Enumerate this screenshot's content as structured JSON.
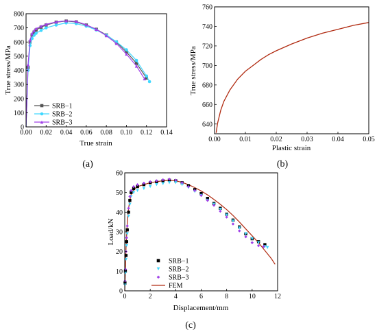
{
  "panels": [
    {
      "label": "(a)",
      "xlabel": "True strain",
      "ylabel": "True stress/MPa",
      "xticks": [
        "0.00",
        "0.02",
        "0.04",
        "0.06",
        "0.08",
        "0.10",
        "0.12",
        "0.14"
      ],
      "yticks": [
        "0",
        "100",
        "200",
        "300",
        "400",
        "500",
        "600",
        "700",
        "800"
      ],
      "legend": [
        "SRB−1",
        "SRB−2",
        "SRB−3"
      ]
    },
    {
      "label": "(b)",
      "xlabel": "Plastic strain",
      "ylabel": "True stress/MPa",
      "xticks": [
        "0.00",
        "0.01",
        "0.02",
        "0.03",
        "0.04",
        "0.05"
      ],
      "yticks": [
        "640",
        "660",
        "680",
        "700",
        "720",
        "740",
        "760"
      ]
    },
    {
      "label": "(c)",
      "xlabel": "Displacement/mm",
      "ylabel": "Load/kN",
      "xticks": [
        "0",
        "2",
        "4",
        "6",
        "8",
        "10",
        "12"
      ],
      "yticks": [
        "0",
        "10",
        "20",
        "30",
        "40",
        "50",
        "60"
      ],
      "legend": [
        "SRB−1",
        "SRB−2",
        "SRB−3",
        "FEM"
      ]
    }
  ],
  "colors": {
    "srb1": "#000000",
    "srb2": "#40d8ff",
    "srb3": "#a040e8",
    "fem": "#b02a10",
    "stress_strain": "#b02a10",
    "srb1_a": "#555555"
  },
  "chart_data": [
    {
      "type": "line",
      "xlabel": "True strain",
      "ylabel": "True stress/MPa",
      "xlim": [
        0,
        0.14
      ],
      "ylim": [
        0,
        800
      ],
      "series": [
        {
          "name": "SRB−1",
          "x": [
            0,
            0.002,
            0.004,
            0.006,
            0.008,
            0.01,
            0.015,
            0.02,
            0.03,
            0.04,
            0.05,
            0.06,
            0.07,
            0.08,
            0.09,
            0.1,
            0.11,
            0.12
          ],
          "y": [
            0,
            420,
            600,
            650,
            670,
            685,
            705,
            720,
            740,
            748,
            742,
            720,
            690,
            650,
            600,
            530,
            450,
            345
          ]
        },
        {
          "name": "SRB−2",
          "x": [
            0,
            0.002,
            0.004,
            0.006,
            0.008,
            0.01,
            0.015,
            0.02,
            0.03,
            0.04,
            0.05,
            0.06,
            0.07,
            0.08,
            0.09,
            0.1,
            0.11,
            0.12,
            0.123
          ],
          "y": [
            0,
            400,
            575,
            625,
            648,
            662,
            682,
            700,
            720,
            735,
            730,
            712,
            685,
            648,
            602,
            545,
            470,
            360,
            320
          ]
        },
        {
          "name": "SRB−3",
          "x": [
            0,
            0.002,
            0.004,
            0.006,
            0.008,
            0.01,
            0.015,
            0.02,
            0.03,
            0.04,
            0.05,
            0.06,
            0.07,
            0.08,
            0.09,
            0.1,
            0.11,
            0.118
          ],
          "y": [
            0,
            440,
            615,
            660,
            680,
            695,
            712,
            725,
            742,
            750,
            745,
            722,
            690,
            645,
            590,
            515,
            430,
            340
          ]
        }
      ]
    },
    {
      "type": "line",
      "xlabel": "Plastic strain",
      "ylabel": "True stress/MPa",
      "xlim": [
        0,
        0.05
      ],
      "ylim": [
        630,
        760
      ],
      "series": [
        {
          "x": [
            0.0005,
            0.001,
            0.002,
            0.003,
            0.005,
            0.0075,
            0.01,
            0.0125,
            0.015,
            0.0175,
            0.02,
            0.025,
            0.03,
            0.035,
            0.04,
            0.045,
            0.05
          ],
          "y": [
            631,
            641,
            654,
            663,
            675,
            686,
            694,
            700,
            706,
            711,
            715,
            722,
            728,
            733,
            737,
            741,
            744
          ]
        }
      ]
    },
    {
      "type": "line",
      "xlabel": "Displacement/mm",
      "ylabel": "Load/kN",
      "xlim": [
        0,
        12
      ],
      "ylim": [
        0,
        60
      ],
      "series": [
        {
          "name": "SRB−1",
          "x": [
            0.02,
            0.05,
            0.1,
            0.15,
            0.2,
            0.3,
            0.4,
            0.5,
            0.7,
            1.0,
            1.5,
            2.0,
            2.5,
            3.0,
            3.5,
            4.0,
            4.5,
            5.0,
            5.5,
            6.0,
            6.5,
            7.0,
            7.5,
            8.0,
            8.5,
            9.0,
            9.5,
            10.0,
            10.5,
            11.0
          ],
          "y": [
            4,
            10,
            18,
            25,
            31,
            40,
            46,
            50,
            52,
            53,
            54,
            55,
            55.5,
            56,
            56.3,
            56,
            55,
            53.5,
            51.5,
            49.5,
            47,
            44.5,
            42,
            39,
            36,
            32.5,
            29,
            26.5,
            25,
            23.5
          ]
        },
        {
          "name": "SRB−2",
          "x": [
            0.02,
            0.05,
            0.1,
            0.15,
            0.2,
            0.3,
            0.4,
            0.5,
            0.7,
            1.0,
            1.5,
            2.0,
            2.5,
            3.0,
            3.5,
            4.0,
            4.5,
            5.0,
            5.5,
            6.0,
            6.5,
            7.0,
            7.5,
            8.0,
            8.5,
            9.0,
            9.5,
            10.0,
            10.5,
            11.0,
            11.2
          ],
          "y": [
            3,
            9,
            16,
            23,
            29,
            38,
            44,
            48,
            50,
            51,
            52,
            53,
            54,
            54.5,
            55,
            55,
            54,
            52.5,
            50.5,
            48.5,
            46,
            44,
            41.5,
            38.5,
            35.5,
            32,
            29,
            26.5,
            24.5,
            22.5,
            22
          ]
        },
        {
          "name": "SRB−3",
          "x": [
            0.02,
            0.05,
            0.1,
            0.15,
            0.2,
            0.3,
            0.4,
            0.5,
            0.7,
            1.0,
            1.5,
            2.0,
            2.5,
            3.0,
            3.5,
            4.0,
            4.5,
            5.0,
            5.5,
            6.0,
            6.5,
            7.0,
            7.5,
            8.0,
            8.5,
            9.0,
            9.5,
            10.0,
            10.5,
            10.9
          ],
          "y": [
            5,
            11,
            20,
            27,
            33,
            42,
            48,
            51,
            53,
            54,
            54.8,
            55.5,
            56,
            56.5,
            56.8,
            56.3,
            55,
            53,
            51,
            48.5,
            46,
            43.5,
            40.5,
            37.5,
            34,
            30.5,
            27.5,
            24.5,
            23,
            22.5
          ]
        },
        {
          "name": "FEM",
          "x": [
            0,
            0.1,
            0.2,
            0.3,
            0.4,
            0.5,
            0.6,
            0.8,
            1.0,
            1.5,
            2.0,
            2.5,
            3.0,
            3.5,
            4.0,
            4.5,
            5.0,
            5.5,
            6.0,
            6.5,
            7.0,
            7.5,
            8.0,
            8.5,
            9.0,
            9.5,
            10.0,
            10.5,
            11.0,
            11.5,
            11.8
          ],
          "y": [
            0,
            22,
            35,
            42,
            46,
            49,
            50.5,
            52,
            53,
            54,
            55,
            55.5,
            56,
            56.2,
            56,
            55.2,
            54,
            52.5,
            50.8,
            48.8,
            46.5,
            44,
            41.3,
            38.3,
            35,
            31.5,
            28,
            24.5,
            20.5,
            16.5,
            13.5
          ]
        }
      ]
    }
  ]
}
